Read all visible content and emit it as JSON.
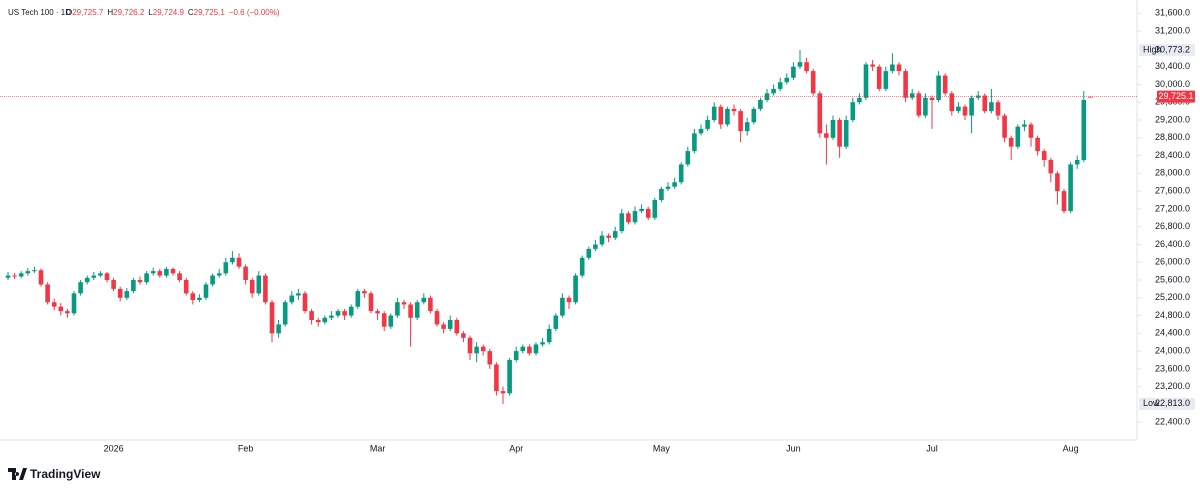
{
  "chart_data": {
    "type": "candlestick",
    "title": "US Tech 100 · 1D",
    "legend": {
      "keys": [
        "O",
        "H",
        "L",
        "C"
      ],
      "labels": [
        "29,725.7",
        "29,726.2",
        "29,724.9",
        "29,725.1"
      ],
      "change_label": "−0.6 (−0.00%)"
    },
    "up_color": "#089981",
    "down_color": "#f23645",
    "ylim": [
      22000,
      31900
    ],
    "yticks": [
      {
        "value": 31600,
        "label": "31,600.0"
      },
      {
        "value": 31200,
        "label": "31,200.0"
      },
      {
        "value": 30400,
        "label": "30,400.0"
      },
      {
        "value": 30000,
        "label": "30,000.0"
      },
      {
        "value": 29600,
        "label": "29,600.0"
      },
      {
        "value": 29200,
        "label": "29,200.0"
      },
      {
        "value": 28800,
        "label": "28,800.0"
      },
      {
        "value": 28400,
        "label": "28,400.0"
      },
      {
        "value": 28000,
        "label": "28,000.0"
      },
      {
        "value": 27600,
        "label": "27,600.0"
      },
      {
        "value": 27200,
        "label": "27,200.0"
      },
      {
        "value": 26800,
        "label": "26,800.0"
      },
      {
        "value": 26400,
        "label": "26,400.0"
      },
      {
        "value": 26000,
        "label": "26,000.0"
      },
      {
        "value": 25600,
        "label": "25,600.0"
      },
      {
        "value": 25200,
        "label": "25,200.0"
      },
      {
        "value": 24800,
        "label": "24,800.0"
      },
      {
        "value": 24400,
        "label": "24,400.0"
      },
      {
        "value": 24000,
        "label": "24,000.0"
      },
      {
        "value": 23600,
        "label": "23,600.0"
      },
      {
        "value": 23200,
        "label": "23,200.0"
      },
      {
        "value": 22400,
        "label": "22,400.0"
      }
    ],
    "high": {
      "label": "High",
      "value": 30773.2,
      "value_label": "30,773.2"
    },
    "low": {
      "label": "Low",
      "value": 22813,
      "value_label": "22,813.0"
    },
    "last_price": {
      "value": 29725.1,
      "label": "29,725.1"
    },
    "categories": [
      null,
      null,
      null,
      null,
      null,
      null,
      null,
      null,
      null,
      null,
      null,
      null,
      null,
      null,
      null,
      null,
      "2026",
      null,
      null,
      null,
      null,
      null,
      null,
      null,
      null,
      null,
      null,
      null,
      null,
      null,
      null,
      null,
      null,
      null,
      null,
      null,
      "Feb",
      null,
      null,
      null,
      null,
      null,
      null,
      null,
      null,
      null,
      null,
      null,
      null,
      null,
      null,
      null,
      null,
      null,
      null,
      null,
      "Mar",
      null,
      null,
      null,
      null,
      null,
      null,
      null,
      null,
      null,
      null,
      null,
      null,
      null,
      null,
      null,
      null,
      null,
      null,
      null,
      null,
      "Apr",
      null,
      null,
      null,
      null,
      null,
      null,
      null,
      null,
      null,
      null,
      null,
      null,
      null,
      null,
      null,
      null,
      null,
      null,
      null,
      null,
      null,
      "May",
      null,
      null,
      null,
      null,
      null,
      null,
      null,
      null,
      null,
      null,
      null,
      null,
      null,
      null,
      null,
      null,
      null,
      null,
      null,
      "Jun",
      null,
      null,
      null,
      null,
      null,
      null,
      null,
      null,
      null,
      null,
      null,
      null,
      null,
      null,
      null,
      null,
      null,
      null,
      null,
      null,
      "Jul",
      null,
      null,
      null,
      null,
      null,
      null,
      null,
      null,
      null,
      null,
      null,
      null,
      null,
      null,
      null,
      null,
      null,
      null,
      null,
      null,
      "Aug",
      null,
      null,
      null
    ],
    "ohlc": [
      [
        25650,
        25780,
        25600,
        25700
      ],
      [
        25700,
        25760,
        25620,
        25680
      ],
      [
        25680,
        25800,
        25640,
        25750
      ],
      [
        25750,
        25870,
        25700,
        25800
      ],
      [
        25800,
        25900,
        25760,
        25820
      ],
      [
        25820,
        25860,
        25450,
        25500
      ],
      [
        25500,
        25550,
        25050,
        25100
      ],
      [
        25100,
        25180,
        24920,
        25000
      ],
      [
        25000,
        25080,
        24800,
        24900
      ],
      [
        24900,
        24950,
        24750,
        24850
      ],
      [
        24850,
        25350,
        24800,
        25300
      ],
      [
        25300,
        25600,
        25250,
        25550
      ],
      [
        25550,
        25700,
        25500,
        25650
      ],
      [
        25650,
        25780,
        25600,
        25700
      ],
      [
        25700,
        25800,
        25660,
        25750
      ],
      [
        25750,
        25780,
        25550,
        25600
      ],
      [
        25600,
        25650,
        25350,
        25400
      ],
      [
        25400,
        25450,
        25120,
        25200
      ],
      [
        25200,
        25420,
        25150,
        25350
      ],
      [
        25350,
        25650,
        25300,
        25600
      ],
      [
        25600,
        25680,
        25500,
        25550
      ],
      [
        25550,
        25800,
        25500,
        25750
      ],
      [
        25750,
        25880,
        25700,
        25800
      ],
      [
        25800,
        25850,
        25650,
        25700
      ],
      [
        25700,
        25900,
        25650,
        25850
      ],
      [
        25850,
        25880,
        25700,
        25750
      ],
      [
        25750,
        25800,
        25550,
        25600
      ],
      [
        25600,
        25650,
        25250,
        25300
      ],
      [
        25300,
        25350,
        25050,
        25150
      ],
      [
        25150,
        25280,
        25100,
        25200
      ],
      [
        25200,
        25550,
        25150,
        25500
      ],
      [
        25500,
        25750,
        25450,
        25700
      ],
      [
        25700,
        25850,
        25650,
        25750
      ],
      [
        25750,
        26100,
        25700,
        26000
      ],
      [
        26000,
        26250,
        25950,
        26100
      ],
      [
        26100,
        26200,
        25850,
        25900
      ],
      [
        25900,
        25950,
        25500,
        25600
      ],
      [
        25600,
        25650,
        25200,
        25300
      ],
      [
        25300,
        25800,
        25250,
        25700
      ],
      [
        25700,
        25750,
        25050,
        25100
      ],
      [
        25100,
        25150,
        24200,
        24400
      ],
      [
        24400,
        24700,
        24300,
        24600
      ],
      [
        24600,
        25150,
        24550,
        25100
      ],
      [
        25100,
        25350,
        25050,
        25250
      ],
      [
        25250,
        25400,
        25150,
        25300
      ],
      [
        25300,
        25350,
        24850,
        24900
      ],
      [
        24900,
        24950,
        24600,
        24700
      ],
      [
        24700,
        24750,
        24550,
        24650
      ],
      [
        24650,
        24800,
        24600,
        24750
      ],
      [
        24750,
        24900,
        24700,
        24800
      ],
      [
        24800,
        24950,
        24750,
        24900
      ],
      [
        24900,
        24950,
        24700,
        24800
      ],
      [
        24800,
        25050,
        24750,
        25000
      ],
      [
        25000,
        25400,
        24950,
        25350
      ],
      [
        25350,
        25400,
        25200,
        25300
      ],
      [
        25300,
        25350,
        24850,
        24900
      ],
      [
        24900,
        24950,
        24700,
        24850
      ],
      [
        24850,
        24900,
        24450,
        24550
      ],
      [
        24550,
        24850,
        24500,
        24800
      ],
      [
        24800,
        25200,
        24750,
        25100
      ],
      [
        25100,
        25150,
        24950,
        25050
      ],
      [
        25050,
        25100,
        24100,
        24750
      ],
      [
        24750,
        25150,
        24700,
        25100
      ],
      [
        25100,
        25300,
        25050,
        25200
      ],
      [
        25200,
        25250,
        24850,
        24900
      ],
      [
        24900,
        24950,
        24550,
        24600
      ],
      [
        24600,
        24650,
        24400,
        24500
      ],
      [
        24500,
        24800,
        24450,
        24700
      ],
      [
        24700,
        24750,
        24350,
        24400
      ],
      [
        24400,
        24450,
        24200,
        24300
      ],
      [
        24300,
        24350,
        23800,
        23950
      ],
      [
        23950,
        24200,
        23750,
        24100
      ],
      [
        24100,
        24150,
        23900,
        24000
      ],
      [
        24000,
        24050,
        23600,
        23700
      ],
      [
        23700,
        23750,
        23000,
        23100
      ],
      [
        23100,
        23200,
        22813,
        23050
      ],
      [
        23050,
        23850,
        23000,
        23800
      ],
      [
        23800,
        24100,
        23750,
        24000
      ],
      [
        24000,
        24150,
        23950,
        24100
      ],
      [
        24100,
        24150,
        23900,
        23950
      ],
      [
        23950,
        24200,
        23900,
        24150
      ],
      [
        24150,
        24300,
        24100,
        24200
      ],
      [
        24200,
        24600,
        24150,
        24500
      ],
      [
        24500,
        24850,
        24450,
        24800
      ],
      [
        24800,
        25300,
        24750,
        25200
      ],
      [
        25200,
        25250,
        24950,
        25100
      ],
      [
        25100,
        25750,
        25050,
        25700
      ],
      [
        25700,
        26150,
        25650,
        26100
      ],
      [
        26100,
        26350,
        26050,
        26300
      ],
      [
        26300,
        26500,
        26250,
        26400
      ],
      [
        26400,
        26700,
        26350,
        26600
      ],
      [
        26600,
        26650,
        26450,
        26550
      ],
      [
        26550,
        26800,
        26500,
        26700
      ],
      [
        26700,
        27200,
        26650,
        27100
      ],
      [
        27100,
        27150,
        26850,
        26900
      ],
      [
        26900,
        27250,
        26850,
        27150
      ],
      [
        27150,
        27300,
        27100,
        27200
      ],
      [
        27200,
        27250,
        26950,
        27000
      ],
      [
        27000,
        27450,
        26950,
        27400
      ],
      [
        27400,
        27700,
        27350,
        27650
      ],
      [
        27650,
        27800,
        27600,
        27700
      ],
      [
        27700,
        27900,
        27650,
        27800
      ],
      [
        27800,
        28250,
        27750,
        28200
      ],
      [
        28200,
        28600,
        28150,
        28500
      ],
      [
        28500,
        29000,
        28450,
        28900
      ],
      [
        28900,
        29100,
        28850,
        29000
      ],
      [
        29000,
        29300,
        28950,
        29200
      ],
      [
        29200,
        29600,
        29150,
        29500
      ],
      [
        29500,
        29550,
        29000,
        29100
      ],
      [
        29100,
        29500,
        29050,
        29450
      ],
      [
        29450,
        29550,
        29300,
        29400
      ],
      [
        29400,
        29450,
        28700,
        28950
      ],
      [
        28950,
        29250,
        28850,
        29150
      ],
      [
        29150,
        29500,
        29100,
        29450
      ],
      [
        29450,
        29700,
        29400,
        29650
      ],
      [
        29650,
        29900,
        29600,
        29800
      ],
      [
        29800,
        30000,
        29750,
        29900
      ],
      [
        29900,
        30150,
        29850,
        30050
      ],
      [
        30050,
        30250,
        30000,
        30150
      ],
      [
        30150,
        30500,
        30100,
        30400
      ],
      [
        30400,
        30773.2,
        30350,
        30500
      ],
      [
        30500,
        30600,
        30250,
        30300
      ],
      [
        30300,
        30350,
        29750,
        29800
      ],
      [
        29800,
        29850,
        28800,
        28900
      ],
      [
        28900,
        29100,
        28200,
        28800
      ],
      [
        28800,
        29300,
        28750,
        29200
      ],
      [
        29200,
        29250,
        28350,
        28600
      ],
      [
        28600,
        29300,
        28550,
        29200
      ],
      [
        29200,
        29700,
        29150,
        29600
      ],
      [
        29600,
        29800,
        29550,
        29700
      ],
      [
        29700,
        30500,
        29650,
        30450
      ],
      [
        30450,
        30550,
        30300,
        30400
      ],
      [
        30400,
        30450,
        29850,
        29900
      ],
      [
        29900,
        30400,
        29850,
        30300
      ],
      [
        30300,
        30700,
        30250,
        30450
      ],
      [
        30450,
        30500,
        30200,
        30300
      ],
      [
        30300,
        30350,
        29600,
        29700
      ],
      [
        29700,
        29900,
        29650,
        29800
      ],
      [
        29800,
        29850,
        29250,
        29300
      ],
      [
        29300,
        29800,
        29250,
        29700
      ],
      [
        29700,
        29750,
        29000,
        29650
      ],
      [
        29650,
        30300,
        29600,
        30200
      ],
      [
        30200,
        30250,
        29750,
        29800
      ],
      [
        29800,
        29850,
        29300,
        29400
      ],
      [
        29400,
        29600,
        29350,
        29500
      ],
      [
        29500,
        29550,
        29200,
        29300
      ],
      [
        29300,
        29750,
        28900,
        29700
      ],
      [
        29700,
        29850,
        29650,
        29750
      ],
      [
        29750,
        29800,
        29350,
        29400
      ],
      [
        29400,
        29900,
        29350,
        29600
      ],
      [
        29600,
        29650,
        29200,
        29300
      ],
      [
        29300,
        29350,
        28700,
        28800
      ],
      [
        28800,
        28850,
        28300,
        28600
      ],
      [
        28600,
        29100,
        28550,
        29050
      ],
      [
        29050,
        29200,
        28950,
        29100
      ],
      [
        29100,
        29150,
        28600,
        28800
      ],
      [
        28800,
        28850,
        28400,
        28500
      ],
      [
        28500,
        28550,
        28150,
        28300
      ],
      [
        28300,
        28350,
        27800,
        28000
      ],
      [
        28000,
        28050,
        27300,
        27600
      ],
      [
        27600,
        27650,
        27100,
        27150
      ],
      [
        27150,
        28250,
        27100,
        28200
      ],
      [
        28200,
        28400,
        28100,
        28300
      ],
      [
        28300,
        29850,
        28250,
        29650
      ],
      [
        29725.7,
        29726.2,
        29724.9,
        29725.1
      ]
    ]
  },
  "brand": "TradingView"
}
